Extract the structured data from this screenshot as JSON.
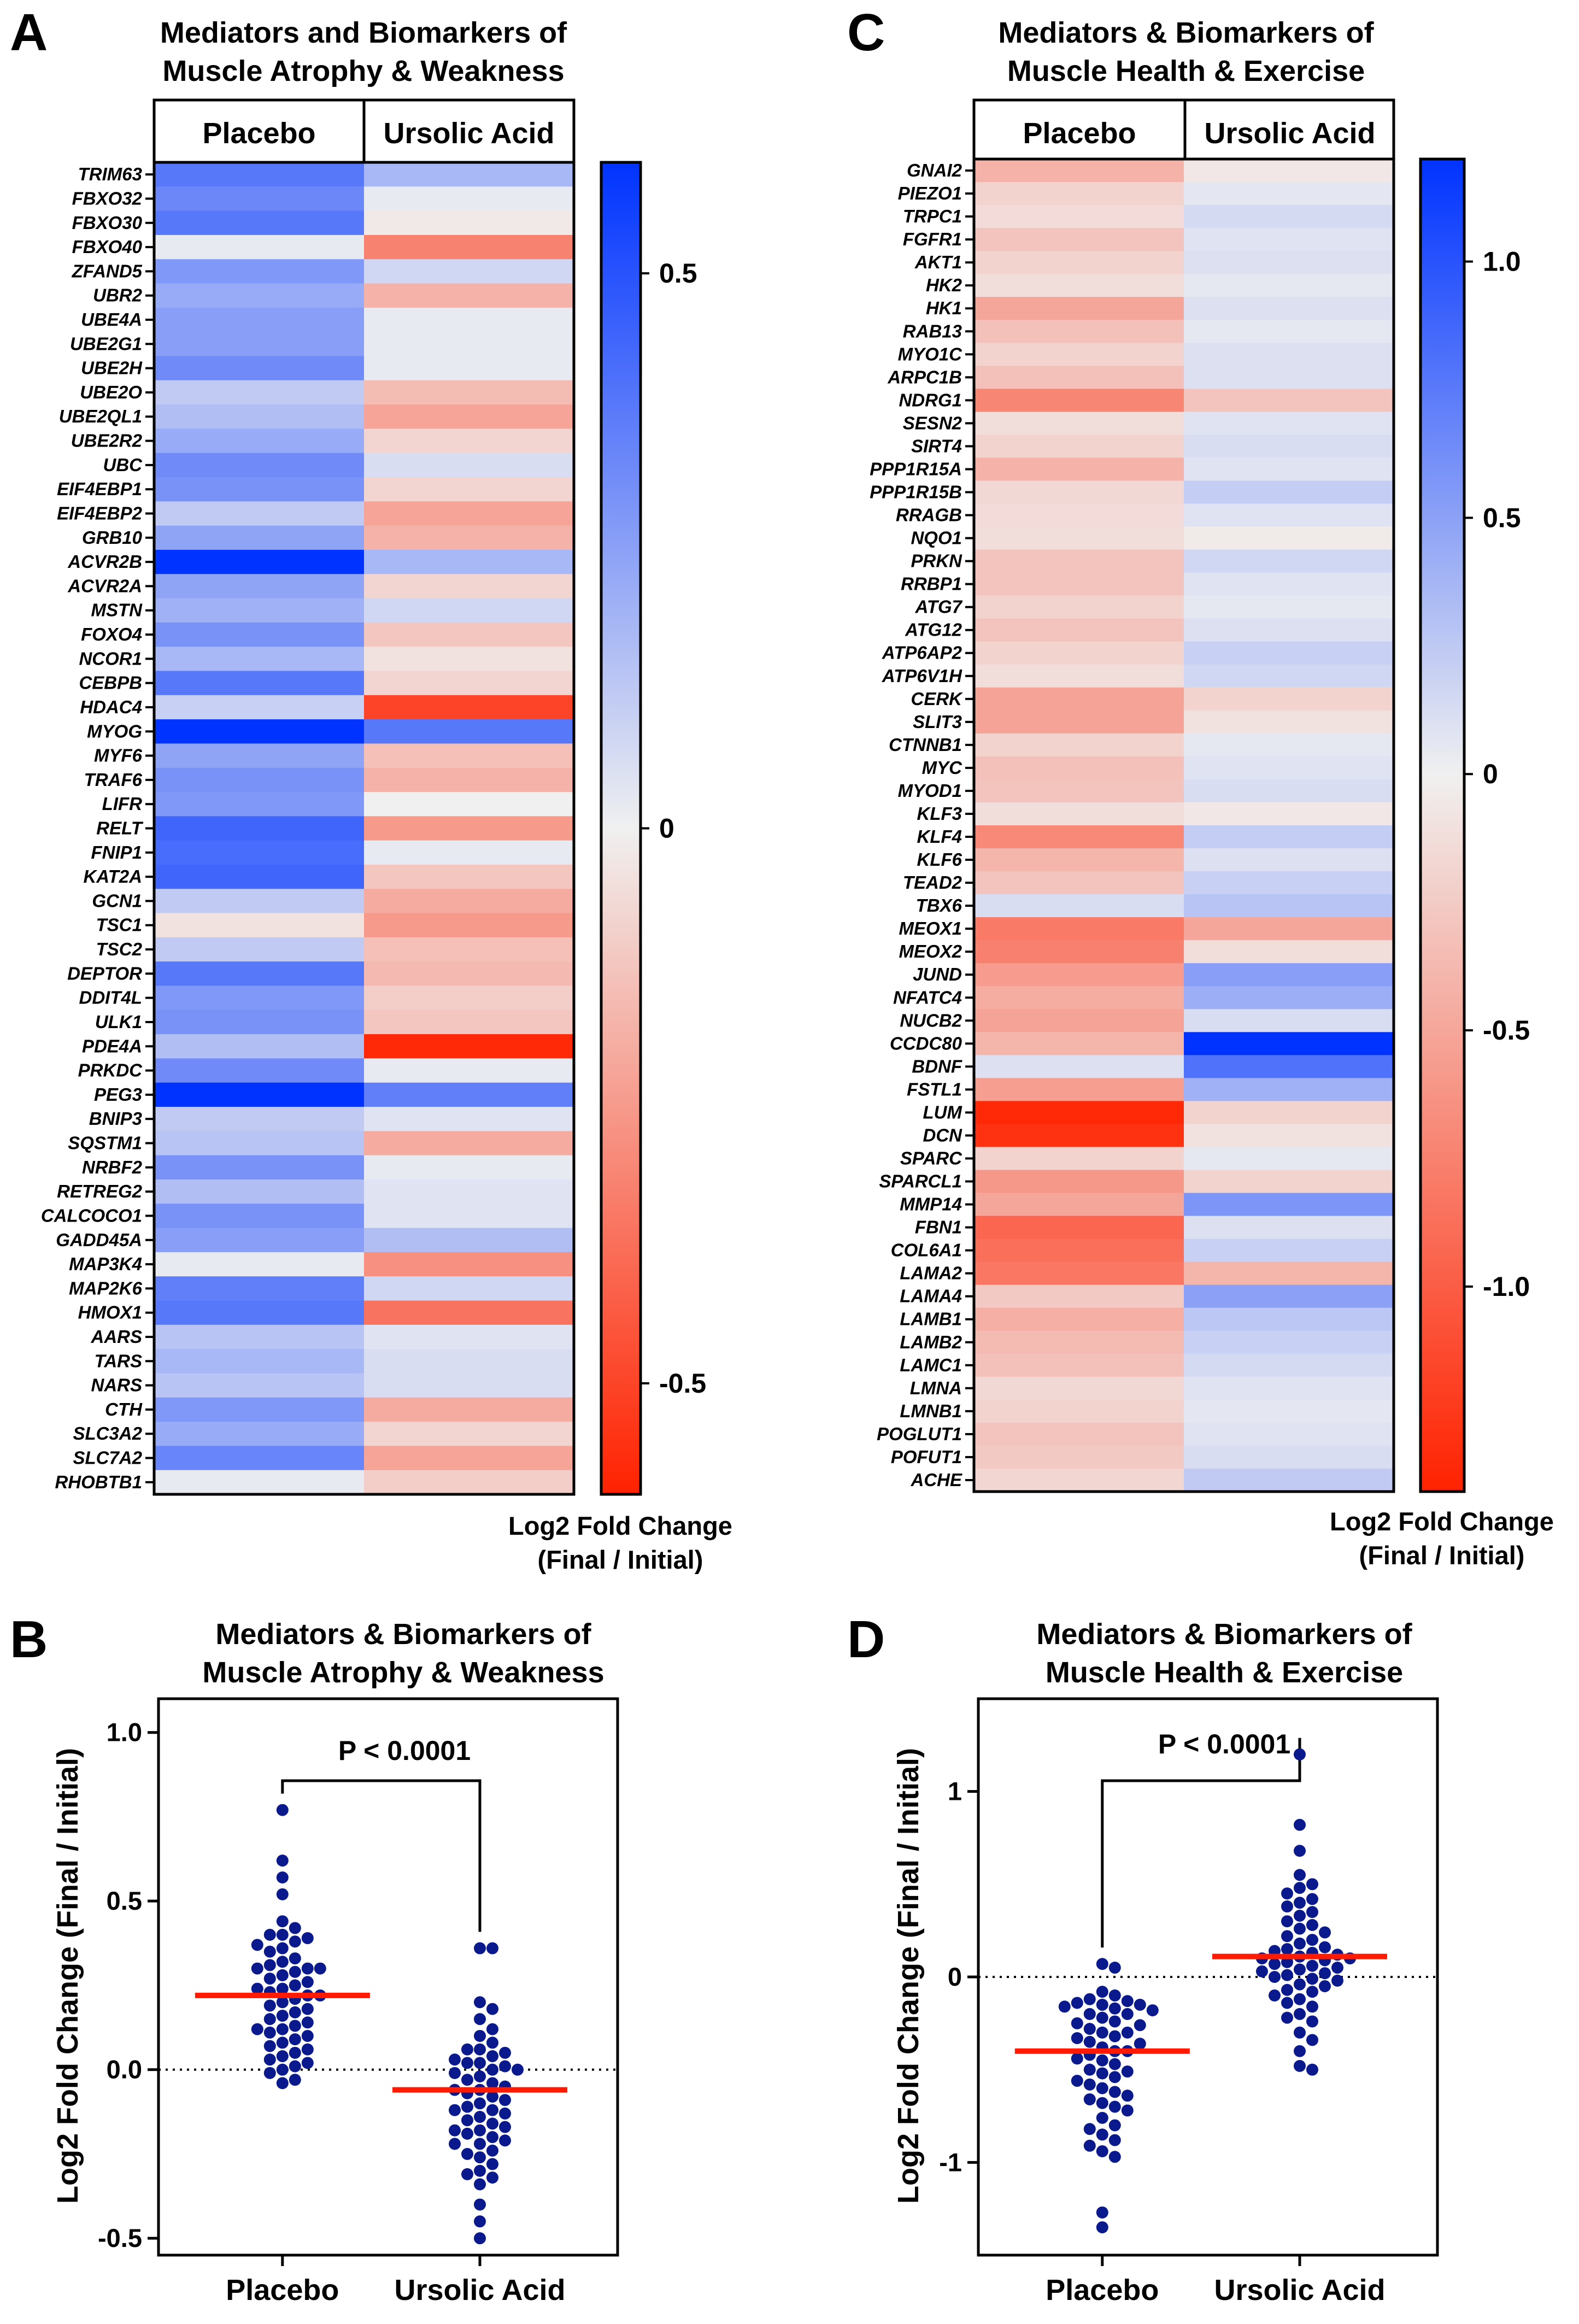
{
  "panels": {
    "A": {
      "letter": "A",
      "title": [
        "Mediators and Biomarkers of",
        "Muscle Atrophy & Weakness"
      ],
      "columns": [
        "Placebo",
        "Ursolic Acid"
      ],
      "colorbar_label": [
        "Log2 Fold Change",
        "(Final / Initial)"
      ]
    },
    "B": {
      "letter": "B",
      "title": [
        "Mediators & Biomarkers of",
        "Muscle Atrophy & Weakness"
      ],
      "ylabel": "Log2 Fold Change (Final / Initial)",
      "pvalue": "P < 0.0001"
    },
    "C": {
      "letter": "C",
      "title": [
        "Mediators & Biomarkers of",
        "Muscle Health & Exercise"
      ],
      "columns": [
        "Placebo",
        "Ursolic Acid"
      ],
      "colorbar_label": [
        "Log2 Fold Change",
        "(Final / Initial)"
      ]
    },
    "D": {
      "letter": "D",
      "title": [
        "Mediators & Biomarkers of",
        "Muscle Health & Exercise"
      ],
      "ylabel": "Log2 Fold Change (Final / Initial)",
      "pvalue": "P < 0.0001"
    }
  },
  "colors": {
    "positive": "#0033ff",
    "negative": "#ff2200",
    "neutral": "#f0f0f0",
    "dots": "#0a1a8c",
    "median": "#ff1a00"
  },
  "chart_data": [
    {
      "id": "A",
      "type": "heatmap",
      "title": "Mediators and Biomarkers of Muscle Atrophy & Weakness",
      "columns": [
        "Placebo",
        "Ursolic Acid"
      ],
      "color_range": [
        -0.6,
        0.6
      ],
      "colorbar_ticks": [
        0.5,
        0,
        -0.5
      ],
      "colorbar_tick_labels": [
        "0.5",
        "0",
        "-0.5"
      ],
      "colorbar_label": "Log2 Fold Change (Final / Initial)",
      "genes": [
        "TRIM63",
        "FBXO32",
        "FBXO30",
        "FBXO40",
        "ZFAND5",
        "UBR2",
        "UBE4A",
        "UBE2G1",
        "UBE2H",
        "UBE2O",
        "UBE2QL1",
        "UBE2R2",
        "UBC",
        "EIF4EBP1",
        "EIF4EBP2",
        "GRB10",
        "ACVR2B",
        "ACVR2A",
        "MSTN",
        "FOXO4",
        "NCOR1",
        "CEBPB",
        "HDAC4",
        "MYOG",
        "MYF6",
        "TRAF6",
        "LIFR",
        "RELT",
        "FNIP1",
        "KAT2A",
        "GCN1",
        "TSC1",
        "TSC2",
        "DEPTOR",
        "DDIT4L",
        "ULK1",
        "PDE4A",
        "PRKDC",
        "PEG3",
        "BNIP3",
        "SQSTM1",
        "NRBF2",
        "RETREG2",
        "CALCOCO1",
        "GADD45A",
        "MAP3K4",
        "MAP2K6",
        "HMOX1",
        "AARS",
        "TARS",
        "NARS",
        "CTH",
        "SLC3A2",
        "SLC7A2",
        "RHOBTB1"
      ],
      "values": [
        [
          0.38,
          0.18
        ],
        [
          0.33,
          0.02
        ],
        [
          0.38,
          -0.02
        ],
        [
          0.02,
          -0.32
        ],
        [
          0.28,
          0.08
        ],
        [
          0.22,
          -0.18
        ],
        [
          0.26,
          0.02
        ],
        [
          0.26,
          0.02
        ],
        [
          0.32,
          0.02
        ],
        [
          0.12,
          -0.15
        ],
        [
          0.16,
          -0.22
        ],
        [
          0.22,
          -0.08
        ],
        [
          0.32,
          0.06
        ],
        [
          0.3,
          -0.08
        ],
        [
          0.12,
          -0.22
        ],
        [
          0.24,
          -0.18
        ],
        [
          0.78,
          0.18
        ],
        [
          0.24,
          -0.08
        ],
        [
          0.2,
          0.08
        ],
        [
          0.3,
          -0.12
        ],
        [
          0.18,
          -0.04
        ],
        [
          0.38,
          -0.08
        ],
        [
          0.1,
          -0.5
        ],
        [
          0.6,
          0.38
        ],
        [
          0.24,
          -0.14
        ],
        [
          0.3,
          -0.18
        ],
        [
          0.28,
          0.0
        ],
        [
          0.44,
          -0.25
        ],
        [
          0.42,
          0.02
        ],
        [
          0.44,
          -0.12
        ],
        [
          0.12,
          -0.2
        ],
        [
          -0.04,
          -0.25
        ],
        [
          0.12,
          -0.14
        ],
        [
          0.38,
          -0.16
        ],
        [
          0.28,
          -0.1
        ],
        [
          0.3,
          -0.12
        ],
        [
          0.16,
          -0.58
        ],
        [
          0.32,
          0.02
        ],
        [
          0.66,
          0.36
        ],
        [
          0.12,
          0.04
        ],
        [
          0.14,
          -0.2
        ],
        [
          0.3,
          0.02
        ],
        [
          0.16,
          0.04
        ],
        [
          0.3,
          0.04
        ],
        [
          0.26,
          0.16
        ],
        [
          0.02,
          -0.28
        ],
        [
          0.36,
          0.08
        ],
        [
          0.38,
          -0.36
        ],
        [
          0.14,
          0.04
        ],
        [
          0.18,
          0.06
        ],
        [
          0.14,
          0.06
        ],
        [
          0.28,
          -0.2
        ],
        [
          0.22,
          -0.08
        ],
        [
          0.34,
          -0.22
        ],
        [
          0.02,
          -0.1
        ]
      ]
    },
    {
      "id": "B",
      "type": "scatter",
      "title": "Mediators & Biomarkers of Muscle Atrophy & Weakness",
      "categories": [
        "Placebo",
        "Ursolic Acid"
      ],
      "ylabel": "Log2 Fold Change (Final / Initial)",
      "ylim": [
        -0.55,
        1.1
      ],
      "yticks": [
        1.0,
        0.5,
        0.0,
        -0.5
      ],
      "ytick_labels": [
        "1.0",
        "0.5",
        "0.0",
        "-0.5"
      ],
      "series": [
        {
          "name": "Placebo",
          "median": 0.22,
          "values": [
            0.77,
            0.62,
            0.57,
            0.52,
            0.44,
            0.42,
            0.4,
            0.4,
            0.39,
            0.38,
            0.37,
            0.36,
            0.35,
            0.33,
            0.32,
            0.31,
            0.3,
            0.3,
            0.3,
            0.29,
            0.28,
            0.27,
            0.26,
            0.25,
            0.24,
            0.24,
            0.23,
            0.22,
            0.22,
            0.21,
            0.2,
            0.19,
            0.18,
            0.17,
            0.16,
            0.15,
            0.14,
            0.13,
            0.12,
            0.12,
            0.11,
            0.1,
            0.09,
            0.08,
            0.07,
            0.06,
            0.05,
            0.04,
            0.03,
            0.02,
            0.01,
            0.0,
            -0.01,
            -0.03,
            -0.04
          ]
        },
        {
          "name": "Ursolic Acid",
          "median": -0.06,
          "values": [
            0.36,
            0.36,
            0.2,
            0.18,
            0.15,
            0.12,
            0.1,
            0.08,
            0.06,
            0.06,
            0.05,
            0.04,
            0.03,
            0.02,
            0.02,
            0.01,
            0.0,
            0.0,
            -0.01,
            -0.02,
            -0.03,
            -0.04,
            -0.05,
            -0.06,
            -0.06,
            -0.07,
            -0.08,
            -0.09,
            -0.1,
            -0.11,
            -0.12,
            -0.12,
            -0.13,
            -0.14,
            -0.15,
            -0.16,
            -0.17,
            -0.18,
            -0.18,
            -0.19,
            -0.2,
            -0.21,
            -0.22,
            -0.22,
            -0.24,
            -0.25,
            -0.26,
            -0.28,
            -0.3,
            -0.31,
            -0.32,
            -0.34,
            -0.4,
            -0.45,
            -0.5
          ]
        }
      ],
      "reference_line": 0,
      "pvalue": "P < 0.0001"
    },
    {
      "id": "C",
      "type": "heatmap",
      "title": "Mediators & Biomarkers of Muscle Health & Exercise",
      "columns": [
        "Placebo",
        "Ursolic Acid"
      ],
      "color_range": [
        -1.4,
        1.2
      ],
      "colorbar_ticks": [
        1.0,
        0.5,
        0,
        -0.5,
        -1.0
      ],
      "colorbar_tick_labels": [
        "1.0",
        "0.5",
        "0",
        "-0.5",
        "-1.0"
      ],
      "colorbar_label": "Log2 Fold Change (Final / Initial)",
      "genes": [
        "GNAI2",
        "PIEZO1",
        "TRPC1",
        "FGFR1",
        "AKT1",
        "HK2",
        "HK1",
        "RAB13",
        "MYO1C",
        "ARPC1B",
        "NDRG1",
        "SESN2",
        "SIRT4",
        "PPP1R15A",
        "PPP1R15B",
        "RRAGB",
        "NQO1",
        "PRKN",
        "RRBP1",
        "ATG7",
        "ATG12",
        "ATP6AP2",
        "ATP6V1H",
        "CERK",
        "SLIT3",
        "CTNNB1",
        "MYC",
        "MYOD1",
        "KLF3",
        "KLF4",
        "KLF6",
        "TEAD2",
        "TBX6",
        "MEOX1",
        "MEOX2",
        "JUND",
        "NFATC4",
        "NUCB2",
        "CCDC80",
        "BDNF",
        "FSTL1",
        "LUM",
        "DCN",
        "SPARC",
        "SPARCL1",
        "MMP14",
        "FBN1",
        "COL6A1",
        "LAMA2",
        "LAMA4",
        "LAMB1",
        "LAMB2",
        "LAMC1",
        "LMNA",
        "LMNB1",
        "POGLUT1",
        "POFUT1",
        "ACHE"
      ],
      "values": [
        [
          -0.42,
          -0.06
        ],
        [
          -0.2,
          0.06
        ],
        [
          -0.14,
          0.14
        ],
        [
          -0.3,
          0.08
        ],
        [
          -0.2,
          0.1
        ],
        [
          -0.12,
          0.05
        ],
        [
          -0.5,
          0.1
        ],
        [
          -0.32,
          0.05
        ],
        [
          -0.2,
          0.1
        ],
        [
          -0.32,
          0.1
        ],
        [
          -0.72,
          -0.3
        ],
        [
          -0.12,
          0.08
        ],
        [
          -0.2,
          0.12
        ],
        [
          -0.42,
          0.08
        ],
        [
          -0.16,
          0.22
        ],
        [
          -0.14,
          0.08
        ],
        [
          -0.12,
          -0.04
        ],
        [
          -0.3,
          0.16
        ],
        [
          -0.3,
          0.08
        ],
        [
          -0.2,
          0.05
        ],
        [
          -0.3,
          0.1
        ],
        [
          -0.2,
          0.2
        ],
        [
          -0.12,
          0.16
        ],
        [
          -0.52,
          -0.2
        ],
        [
          -0.52,
          -0.1
        ],
        [
          -0.2,
          0.05
        ],
        [
          -0.32,
          0.08
        ],
        [
          -0.3,
          0.12
        ],
        [
          -0.12,
          -0.06
        ],
        [
          -0.7,
          0.22
        ],
        [
          -0.4,
          0.1
        ],
        [
          -0.3,
          0.2
        ],
        [
          0.12,
          0.28
        ],
        [
          -0.8,
          -0.5
        ],
        [
          -0.76,
          -0.12
        ],
        [
          -0.58,
          0.52
        ],
        [
          -0.46,
          0.42
        ],
        [
          -0.52,
          0.12
        ],
        [
          -0.4,
          1.22
        ],
        [
          0.1,
          0.8
        ],
        [
          -0.56,
          0.4
        ],
        [
          -1.36,
          -0.2
        ],
        [
          -1.3,
          -0.1
        ],
        [
          -0.2,
          0.05
        ],
        [
          -0.6,
          -0.2
        ],
        [
          -0.5,
          0.58
        ],
        [
          -0.94,
          0.1
        ],
        [
          -0.88,
          0.2
        ],
        [
          -0.82,
          -0.4
        ],
        [
          -0.26,
          0.5
        ],
        [
          -0.44,
          0.26
        ],
        [
          -0.36,
          0.2
        ],
        [
          -0.32,
          0.14
        ],
        [
          -0.16,
          0.08
        ],
        [
          -0.2,
          0.06
        ],
        [
          -0.3,
          0.08
        ],
        [
          -0.26,
          0.12
        ],
        [
          -0.18,
          0.24
        ]
      ]
    },
    {
      "id": "D",
      "type": "scatter",
      "title": "Mediators & Biomarkers of Muscle Health & Exercise",
      "categories": [
        "Placebo",
        "Ursolic Acid"
      ],
      "ylabel": "Log2 Fold Change (Final / Initial)",
      "ylim": [
        -1.5,
        1.5
      ],
      "yticks": [
        1,
        0,
        -1
      ],
      "ytick_labels": [
        "1",
        "0",
        "-1"
      ],
      "series": [
        {
          "name": "Placebo",
          "median": -0.4,
          "values": [
            0.07,
            0.05,
            -0.08,
            -0.1,
            -0.12,
            -0.13,
            -0.14,
            -0.15,
            -0.15,
            -0.16,
            -0.17,
            -0.18,
            -0.2,
            -0.2,
            -0.22,
            -0.24,
            -0.25,
            -0.26,
            -0.28,
            -0.3,
            -0.3,
            -0.32,
            -0.33,
            -0.35,
            -0.36,
            -0.38,
            -0.4,
            -0.4,
            -0.42,
            -0.44,
            -0.45,
            -0.47,
            -0.5,
            -0.51,
            -0.52,
            -0.54,
            -0.56,
            -0.58,
            -0.6,
            -0.62,
            -0.64,
            -0.66,
            -0.68,
            -0.7,
            -0.72,
            -0.76,
            -0.8,
            -0.82,
            -0.85,
            -0.88,
            -0.91,
            -0.94,
            -0.97,
            -1.27,
            -1.35
          ]
        },
        {
          "name": "Ursolic Acid",
          "median": 0.11,
          "values": [
            1.2,
            0.82,
            0.68,
            0.55,
            0.5,
            0.48,
            0.45,
            0.42,
            0.4,
            0.38,
            0.35,
            0.33,
            0.3,
            0.28,
            0.26,
            0.24,
            0.22,
            0.2,
            0.18,
            0.16,
            0.15,
            0.14,
            0.13,
            0.12,
            0.11,
            0.1,
            0.1,
            0.09,
            0.08,
            0.07,
            0.06,
            0.05,
            0.04,
            0.03,
            0.02,
            0.01,
            0.0,
            -0.01,
            -0.02,
            -0.04,
            -0.05,
            -0.07,
            -0.08,
            -0.1,
            -0.12,
            -0.14,
            -0.16,
            -0.2,
            -0.22,
            -0.24,
            -0.3,
            -0.34,
            -0.4,
            -0.48,
            -0.5
          ]
        }
      ],
      "reference_line": 0,
      "pvalue": "P < 0.0001"
    }
  ]
}
